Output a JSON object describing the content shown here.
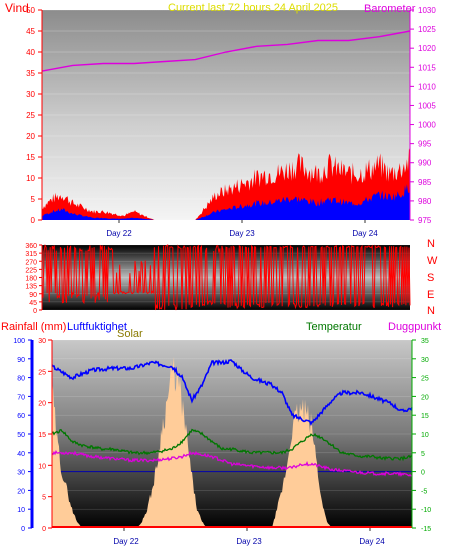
{
  "colors": {
    "wind": "#ff0000",
    "gust": "#ff0000",
    "avgwind": "#0000ff",
    "barometer": "#dd00dd",
    "humidity": "#0000ff",
    "temperature": "#007700",
    "dewpoint": "#dd00dd",
    "solar": "#ffcc99",
    "axis_red": "#ff0000",
    "axis_blue": "#0000ff",
    "axis_green": "#00aa00"
  },
  "header": {
    "left": "Vind",
    "title": "Current last 72 hours 24 April 2025",
    "right": "Barometer"
  },
  "bottom_header": {
    "rain": "Rainfall (mm)",
    "humidity": "Luftfuktighet",
    "solar": "Solar",
    "temperature": "Temperatur",
    "dewpoint": "Duggpunkt"
  },
  "chart_data": [
    {
      "type": "area",
      "name_left": "Vind",
      "name_right": "Barometer",
      "x_ticks": [
        "Day 22",
        "Day 23",
        "Day 24"
      ],
      "x_range": [
        0,
        72
      ],
      "y_left_range": [
        0,
        50
      ],
      "y_left_ticks": [
        0,
        5,
        10,
        15,
        20,
        25,
        30,
        35,
        40,
        45,
        50
      ],
      "y_right_range": [
        975,
        1030
      ],
      "y_right_ticks": [
        975,
        980,
        985,
        990,
        995,
        1000,
        1005,
        1010,
        1015,
        1020,
        1025,
        1030
      ],
      "series": [
        {
          "name": "Barometer",
          "axis": "right",
          "x": [
            0,
            6,
            12,
            18,
            24,
            30,
            36,
            42,
            48,
            54,
            60,
            66,
            72
          ],
          "values": [
            1014,
            1015.5,
            1016,
            1016,
            1016.5,
            1017,
            1019,
            1020.5,
            1021,
            1022,
            1022,
            1023,
            1024.5
          ]
        },
        {
          "name": "Gust",
          "axis": "left",
          "x": [
            0,
            2,
            4,
            6,
            8,
            10,
            12,
            14,
            16,
            18,
            20,
            22,
            24,
            26,
            28,
            30,
            32,
            34,
            36,
            38,
            40,
            42,
            44,
            46,
            48,
            50,
            52,
            54,
            56,
            58,
            60,
            62,
            64,
            66,
            68,
            70,
            72
          ],
          "values": [
            3,
            5,
            6,
            4,
            3,
            2,
            2,
            1.5,
            1,
            2,
            1,
            0,
            0,
            0,
            0,
            0,
            3,
            6,
            7,
            8,
            9,
            10,
            11,
            11,
            12,
            13,
            12,
            11,
            13,
            12,
            11,
            11,
            12,
            13,
            11,
            12,
            14
          ]
        },
        {
          "name": "Average",
          "axis": "left",
          "x": [
            0,
            2,
            4,
            6,
            8,
            10,
            12,
            14,
            16,
            18,
            20,
            22,
            24,
            26,
            28,
            30,
            32,
            34,
            36,
            38,
            40,
            42,
            44,
            46,
            48,
            50,
            52,
            54,
            56,
            58,
            60,
            62,
            64,
            66,
            68,
            70,
            72
          ],
          "values": [
            1,
            2,
            2.5,
            1.5,
            1,
            0.5,
            0.5,
            0.3,
            0.3,
            0.5,
            0.3,
            0,
            0,
            0,
            0,
            0,
            1,
            2,
            2.5,
            3,
            3.5,
            4,
            4,
            4.5,
            5,
            5,
            4.5,
            4,
            5,
            4.5,
            4,
            4,
            5,
            6,
            5.5,
            6,
            8
          ]
        }
      ]
    },
    {
      "type": "scatter",
      "name": "Wind direction",
      "y_range": [
        0,
        360
      ],
      "y_ticks": [
        0,
        45,
        90,
        135,
        180,
        225,
        270,
        315,
        360
      ],
      "y_tick_labels": [
        "0",
        "45",
        "90",
        "135",
        "180",
        "225",
        "270",
        "315",
        "360"
      ],
      "compass": [
        "N",
        "W",
        "S",
        "E",
        "N"
      ],
      "x_ticks": [
        "Day 22",
        "Day 23",
        "Day 24"
      ],
      "x_range": [
        0,
        72
      ]
    },
    {
      "type": "line",
      "x_ticks": [
        "Day 22",
        "Day 23",
        "Day 24"
      ],
      "x_range": [
        0,
        72
      ],
      "rain_ticks": [
        0,
        5,
        10,
        15,
        20,
        25,
        30
      ],
      "rain_range": [
        0,
        30
      ],
      "humidity_ticks": [
        0,
        10,
        20,
        30,
        40,
        50,
        60,
        70,
        80,
        90,
        100
      ],
      "humidity_range": [
        0,
        100
      ],
      "temperature_ticks": [
        -15,
        -10,
        -5,
        0,
        5,
        10,
        15,
        20,
        25,
        30,
        35
      ],
      "temperature_range": [
        -15,
        35
      ],
      "series": [
        {
          "name": "Luftfuktighet",
          "axis": "humidity",
          "x": [
            0,
            4,
            8,
            12,
            16,
            20,
            24,
            26,
            28,
            30,
            32,
            34,
            36,
            38,
            40,
            42,
            44,
            46,
            48,
            50,
            52,
            54,
            56,
            58,
            60,
            62,
            64,
            66,
            68,
            70,
            72
          ],
          "values": [
            86,
            80,
            84,
            85,
            85,
            88,
            86,
            80,
            68,
            76,
            88,
            88,
            89,
            84,
            80,
            78,
            76,
            72,
            60,
            58,
            56,
            62,
            68,
            72,
            72,
            72,
            70,
            68,
            66,
            62,
            64
          ]
        },
        {
          "name": "Temperatur",
          "axis": "temperature",
          "x": [
            0,
            2,
            4,
            6,
            8,
            10,
            12,
            14,
            16,
            18,
            20,
            22,
            24,
            26,
            28,
            30,
            32,
            34,
            36,
            38,
            40,
            42,
            44,
            46,
            48,
            50,
            52,
            54,
            56,
            58,
            60,
            62,
            64,
            66,
            68,
            70,
            72
          ],
          "values": [
            10,
            11,
            8,
            7,
            6.5,
            6,
            6,
            5.5,
            5,
            5,
            5,
            5.5,
            6,
            8,
            11,
            10,
            8,
            6,
            6,
            5.5,
            5,
            5,
            5,
            5,
            6,
            8,
            10,
            9,
            7,
            5,
            4.5,
            4,
            4,
            3.5,
            3.5,
            3.5,
            4
          ]
        },
        {
          "name": "Duggpunkt",
          "axis": "temperature",
          "x": [
            0,
            4,
            8,
            12,
            16,
            20,
            24,
            26,
            28,
            30,
            32,
            34,
            36,
            40,
            44,
            48,
            50,
            52,
            56,
            60,
            64,
            68,
            72
          ],
          "values": [
            5,
            5,
            4,
            3.5,
            3,
            3,
            3.5,
            4,
            5,
            4.5,
            4,
            3,
            2,
            1.5,
            1,
            1,
            2,
            2,
            0.5,
            0,
            -0.5,
            -0.5,
            -1
          ]
        },
        {
          "name": "Solar",
          "axis": "rain",
          "x": [
            0,
            1,
            2,
            3,
            4,
            5,
            6,
            7,
            8,
            9,
            10,
            11,
            12,
            13,
            14,
            15,
            16,
            17,
            18,
            19,
            20,
            21,
            22,
            23,
            24,
            25,
            26,
            27,
            28,
            29,
            30,
            31,
            32,
            33,
            34,
            35,
            36,
            37,
            38,
            39,
            40,
            41,
            42,
            43,
            44,
            45,
            46,
            47,
            48,
            49,
            50,
            51,
            52,
            53,
            54,
            55,
            56,
            57,
            58,
            59,
            60,
            61,
            62,
            63,
            64,
            65,
            66,
            67,
            68,
            69,
            70,
            71,
            72
          ],
          "values": [
            22,
            14,
            9,
            6,
            3,
            1,
            0,
            0,
            0,
            0,
            0,
            0,
            0,
            0,
            0,
            0,
            0,
            0,
            1,
            3,
            6,
            10,
            16,
            20,
            25,
            24,
            20,
            14,
            8,
            3,
            1,
            0,
            0,
            0,
            0,
            0,
            0,
            0,
            0,
            0,
            0,
            0,
            0,
            0,
            0,
            3,
            6,
            10,
            16,
            18,
            19,
            18,
            16,
            10,
            4,
            1,
            0,
            0,
            0,
            0,
            0,
            0,
            0,
            0,
            0,
            0,
            0,
            0,
            0,
            0,
            0,
            0,
            0
          ]
        }
      ]
    }
  ]
}
